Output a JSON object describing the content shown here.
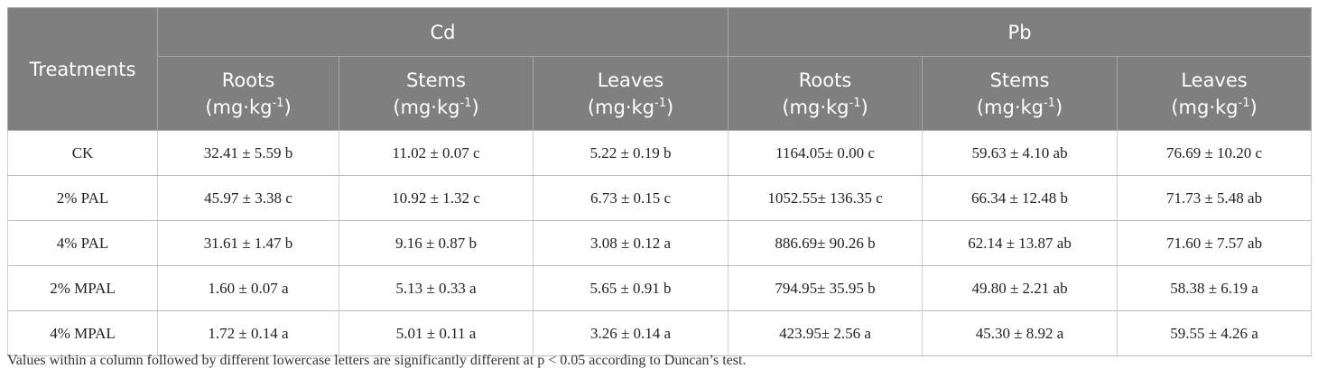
{
  "table": {
    "corner": "Treatments",
    "groups": [
      {
        "name": "Cd",
        "columns": [
          {
            "label": "Roots",
            "unit": "(mg·kg",
            "exp": "-1",
            "close": ")"
          },
          {
            "label": "Stems",
            "unit": "(mg·kg",
            "exp": "-1",
            "close": ")"
          },
          {
            "label": "Leaves",
            "unit": "(mg·kg",
            "exp": "-1",
            "close": ")"
          }
        ]
      },
      {
        "name": "Pb",
        "columns": [
          {
            "label": "Roots",
            "unit": "(mg·kg",
            "exp": "-1",
            "close": ")"
          },
          {
            "label": "Stems",
            "unit": "(mg·kg",
            "exp": "-1",
            "close": ")"
          },
          {
            "label": "Leaves",
            "unit": "(mg·kg",
            "exp": "-1",
            "close": ")"
          }
        ]
      }
    ],
    "rows": [
      [
        "CK",
        "32.41 ± 5.59 b",
        "11.02 ± 0.07 c",
        "5.22 ± 0.19 b",
        "1164.05± 0.00 c",
        "59.63 ± 4.10 ab",
        "76.69 ± 10.20 c"
      ],
      [
        "2% PAL",
        "45.97 ± 3.38 c",
        "10.92 ± 1.32 c",
        "6.73 ± 0.15 c",
        "1052.55± 136.35 c",
        "66.34 ± 12.48 b",
        "71.73 ± 5.48 ab"
      ],
      [
        "4% PAL",
        "31.61 ± 1.47 b",
        "9.16 ± 0.87 b",
        "3.08 ± 0.12 a",
        "886.69± 90.26 b",
        "62.14 ± 13.87 ab",
        "71.60 ± 7.57 ab"
      ],
      [
        "2% MPAL",
        "1.60 ± 0.07 a",
        "5.13 ± 0.33 a",
        "5.65 ± 0.91 b",
        "794.95± 35.95 b",
        "49.80 ± 2.21 ab",
        "58.38 ± 6.19 a"
      ],
      [
        "4% MPAL",
        "1.72 ± 0.14 a",
        "5.01 ± 0.11 a",
        "3.26 ± 0.14 a",
        "423.95± 2.56 a",
        "45.30 ± 8.92 a",
        "59.55 ± 4.26 a"
      ]
    ]
  },
  "footnote": "Values within a column followed by different lowercase letters are significantly different at p < 0.05 according to Duncan’s test."
}
